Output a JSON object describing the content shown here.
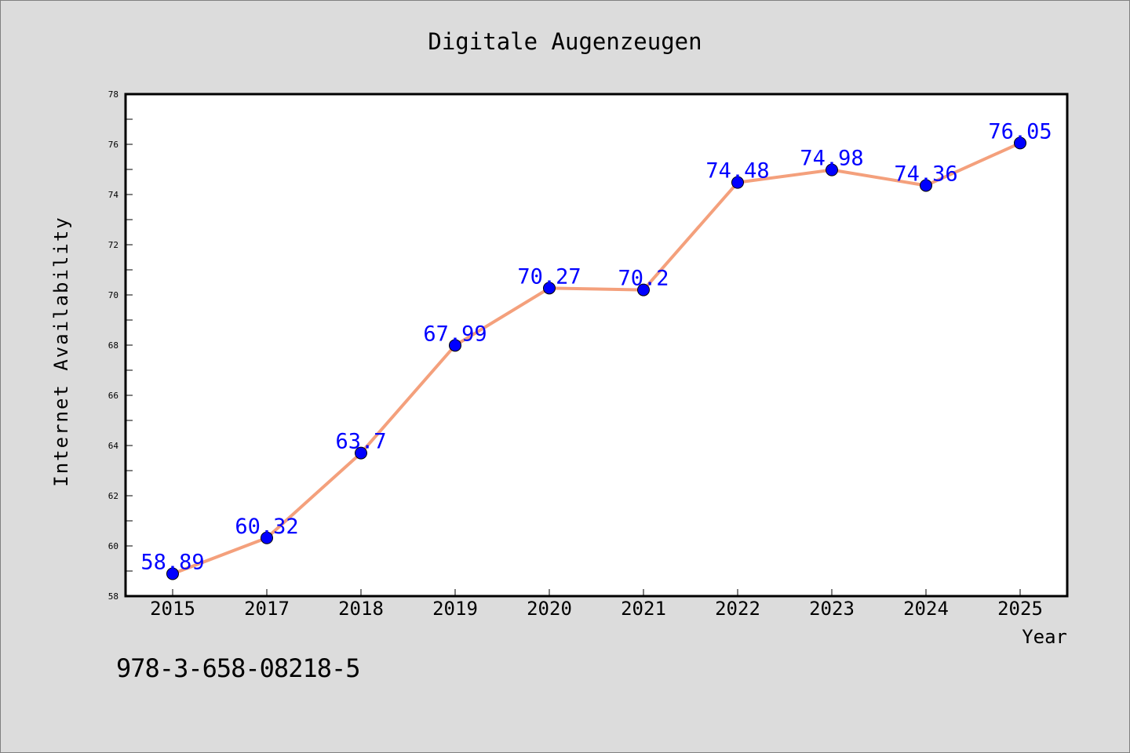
{
  "figure": {
    "caption": "978-3-658-08218-5"
  },
  "chart_data": {
    "type": "line",
    "title": "Digitale Augenzeugen",
    "xlabel": "Year",
    "ylabel": "Internet Availability",
    "categories": [
      "2015",
      "2017",
      "2018",
      "2019",
      "2020",
      "2021",
      "2022",
      "2023",
      "2024",
      "2025"
    ],
    "series": [
      {
        "values": [
          58.89,
          60.32,
          63.7,
          67.99,
          70.27,
          70.2,
          74.48,
          74.98,
          74.36,
          76.05
        ],
        "data_labels": [
          "58.89",
          "60.32",
          "63.7",
          "67.99",
          "70.27",
          "70.2",
          "74.48",
          "74.98",
          "74.36",
          "76.05"
        ],
        "line_color": "#f4a07c",
        "marker_color": "#0000ff"
      }
    ],
    "ylim": [
      58,
      78
    ],
    "yticks": [
      58,
      60,
      62,
      64,
      66,
      68,
      70,
      72,
      74,
      76,
      78
    ],
    "grid": false,
    "legend": "none",
    "colors": {
      "background": "#dcdcdc",
      "plot_background": "#ffffff",
      "label": "#0000ff"
    }
  }
}
